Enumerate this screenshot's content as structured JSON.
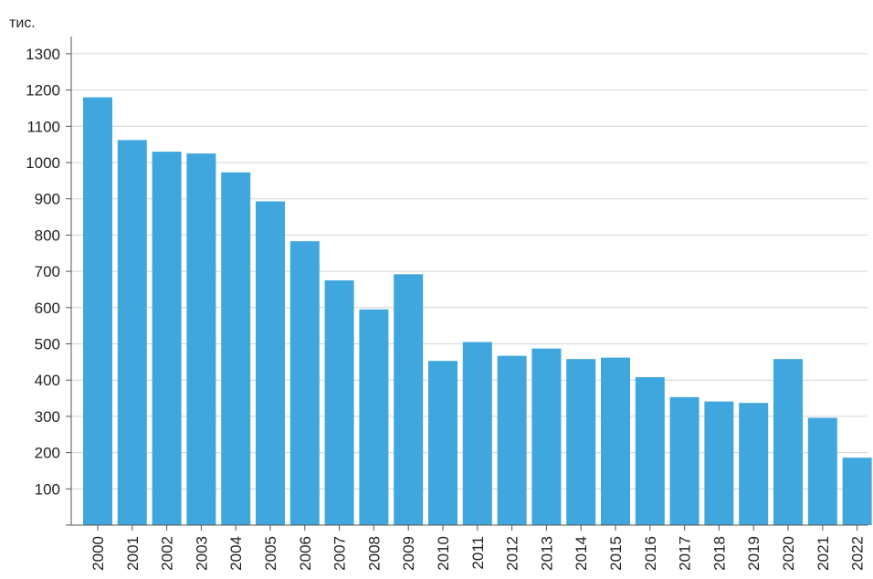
{
  "chart_data": {
    "type": "bar",
    "unit_label": "тис.",
    "categories": [
      "2000",
      "2001",
      "2002",
      "2003",
      "2004",
      "2005",
      "2006",
      "2007",
      "2008",
      "2009",
      "2010",
      "2011",
      "2012",
      "2013",
      "2014",
      "2015",
      "2016",
      "2017",
      "2018",
      "2019",
      "2020",
      "2021",
      "2022"
    ],
    "values": [
      1180,
      1062,
      1030,
      1025,
      973,
      893,
      783,
      675,
      595,
      692,
      453,
      505,
      467,
      487,
      458,
      462,
      408,
      353,
      341,
      337,
      458,
      296,
      186
    ],
    "yticks": [
      100,
      200,
      300,
      400,
      500,
      600,
      700,
      800,
      900,
      1000,
      1100,
      1200,
      1300
    ],
    "ylim": [
      0,
      1300
    ],
    "grid": true,
    "legend": "none",
    "colors": {
      "bar": "#3fa7dd",
      "grid": "#d4d4d4",
      "axis": "#555555"
    }
  }
}
